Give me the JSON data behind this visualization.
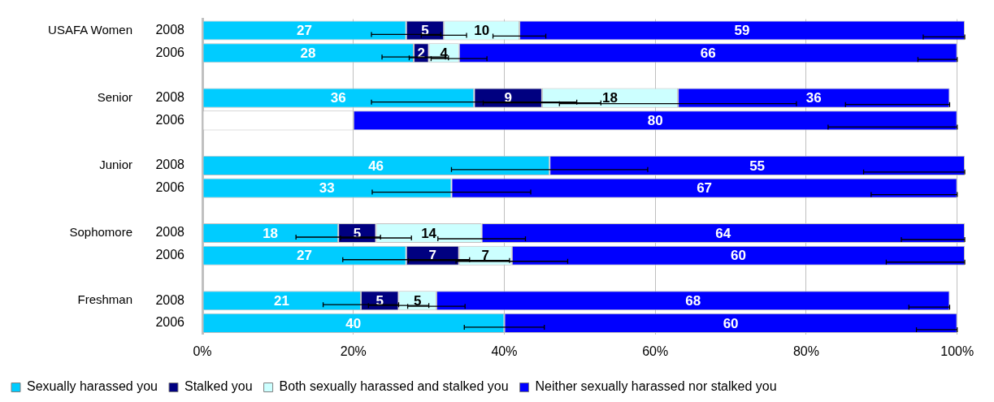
{
  "chart_data": {
    "type": "bar",
    "orientation": "horizontal",
    "stacked": true,
    "categories": [
      "2008",
      "2006",
      null,
      "2008",
      "2006",
      null,
      "2008",
      "2006",
      null,
      "2008",
      "2006",
      null,
      "2008",
      "2006"
    ],
    "annotations": [
      "USAFA Women",
      "Senior",
      "Junior",
      "Sophomore",
      "Freshman"
    ],
    "series": [
      {
        "name": "Sexually harassed you",
        "color": "#00ccff",
        "colors": [
          "#00ccff",
          "#00ccff",
          "#00ccff",
          "#00ccff",
          "#ffffff",
          "#00ccff",
          "#00ccff",
          "#00ccff",
          "#00ccff",
          "#00ccff",
          "#00ccff",
          "#00ccff",
          "#00ccff",
          "#00ccff"
        ],
        "values": [
          27,
          28,
          null,
          36,
          20,
          null,
          46,
          33,
          null,
          18,
          27,
          null,
          21,
          40
        ],
        "value_labels": [
          "27",
          "28",
          null,
          "36",
          null,
          null,
          "46",
          "33",
          null,
          "18",
          "27",
          null,
          "21",
          "40"
        ],
        "errors": [
          4.6,
          4.2,
          null,
          13.6,
          null,
          null,
          13,
          10.5,
          null,
          5.6,
          8.4,
          null,
          5,
          5.3
        ]
      },
      {
        "name": "Stalked you",
        "color": "#000080",
        "values": [
          5,
          2,
          null,
          9,
          null,
          null,
          null,
          null,
          null,
          5,
          7,
          null,
          5,
          null
        ],
        "errors": [
          3,
          2.6,
          null,
          7.8,
          null,
          null,
          null,
          null,
          null,
          4.7,
          6.7,
          null,
          4,
          null
        ]
      },
      {
        "name": "Both sexually harassed and stalked you",
        "color": "#ccffff",
        "values": [
          10,
          4,
          null,
          18,
          null,
          null,
          null,
          null,
          null,
          14,
          7,
          null,
          5,
          null
        ],
        "errors": [
          3.5,
          3.7,
          null,
          15.7,
          null,
          null,
          null,
          null,
          null,
          5.8,
          7.4,
          null,
          3.8,
          null
        ]
      },
      {
        "name": "Neither sexually harassed nor stalked you",
        "color": "#0000ff",
        "values": [
          59,
          66,
          null,
          36,
          80,
          null,
          55,
          67,
          null,
          64,
          60,
          null,
          68,
          60
        ],
        "errors": [
          [
            95.5,
            101
          ],
          [
            94.8,
            100
          ],
          null,
          [
            85.2,
            99
          ],
          [
            82.9,
            100
          ],
          null,
          [
            87.6,
            101
          ],
          [
            88.6,
            100
          ],
          null,
          [
            92.6,
            101
          ],
          [
            90.6,
            101
          ],
          null,
          [
            93.6,
            99
          ],
          [
            94.6,
            100
          ]
        ]
      }
    ],
    "xlim": [
      0,
      101
    ],
    "xticks": [
      {
        "value": 0,
        "label": "0%"
      },
      {
        "value": 20,
        "label": "20%"
      },
      {
        "value": 40,
        "label": "40%"
      },
      {
        "value": 60,
        "label": "60%"
      },
      {
        "value": 80,
        "label": "80%"
      },
      {
        "value": 100,
        "label": "100%"
      }
    ],
    "grid": "x",
    "legend": "bottom",
    "data_labels": true
  }
}
